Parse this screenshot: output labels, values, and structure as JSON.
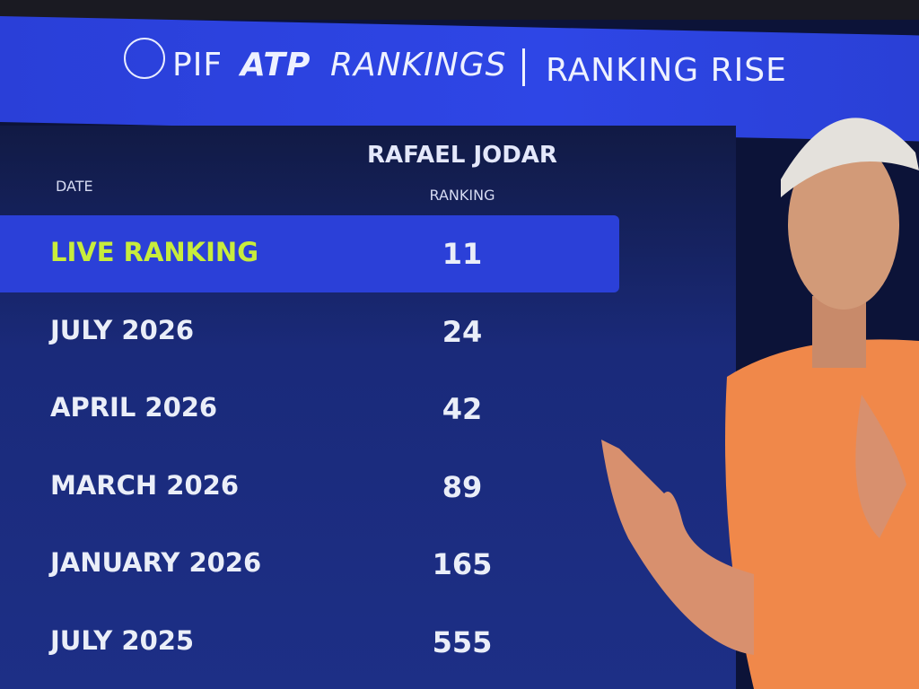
{
  "header": {
    "sponsor": "PIF",
    "brand": "ATP",
    "title": "RANKINGS",
    "subtitle": "RANKING RISE"
  },
  "table": {
    "player": "RAFAEL JODAR",
    "columns": [
      "DATE",
      "RANKING"
    ],
    "rows": [
      [
        "LIVE RANKING",
        11
      ],
      [
        "JULY 2026",
        24
      ],
      [
        "APRIL 2026",
        42
      ],
      [
        "MARCH 2026",
        89
      ],
      [
        "JANUARY 2026",
        165
      ],
      [
        "JULY 2025",
        555
      ]
    ]
  }
}
